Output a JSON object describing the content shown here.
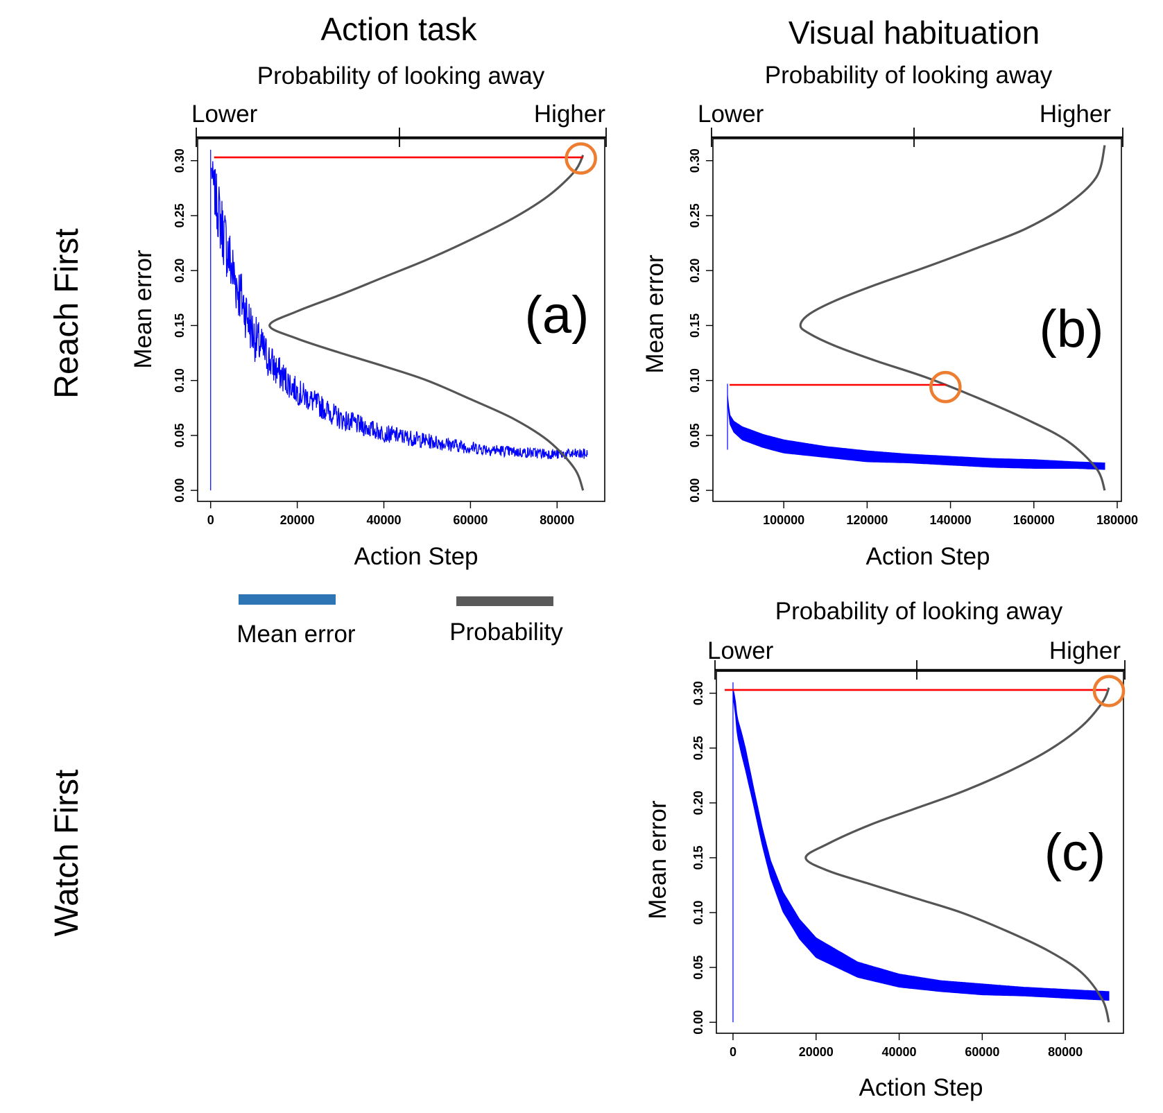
{
  "headers": {
    "action_task": "Action task",
    "visual_habituation": "Visual habituation"
  },
  "row_labels": {
    "reach_first": "Reach First",
    "watch_first": "Watch First"
  },
  "legend": {
    "items": [
      {
        "label": "Mean error",
        "color": "#2e75b6"
      },
      {
        "label": "Probability",
        "color": "#595959"
      }
    ]
  },
  "colors": {
    "mean_error_line": "#0000ff",
    "probability_curve": "#555555",
    "threshold_line": "#ff0000",
    "highlight_circle": "#ed7d31"
  },
  "chart_data": [
    {
      "id": "a",
      "type": "line",
      "panel_label": "(a)",
      "prob_title": "Probability of looking away",
      "prob_axis_left": "Lower",
      "prob_axis_right": "Higher",
      "xlabel": "Action Step",
      "ylabel": "Mean error",
      "xlim": [
        -3000,
        91000
      ],
      "ylim": [
        -0.01,
        0.32
      ],
      "xticks": [
        0,
        20000,
        40000,
        60000,
        80000
      ],
      "yticks": [
        0.0,
        0.05,
        0.1,
        0.15,
        0.2,
        0.25,
        0.3
      ],
      "series": [
        {
          "name": "Mean error",
          "style": "noisy",
          "x": [
            0,
            500,
            2000,
            5000,
            10000,
            15000,
            20000,
            30000,
            40000,
            50000,
            60000,
            70000,
            80000,
            87000
          ],
          "y": [
            0.3,
            0.28,
            0.25,
            0.2,
            0.14,
            0.11,
            0.09,
            0.065,
            0.052,
            0.045,
            0.039,
            0.035,
            0.033,
            0.033
          ],
          "noise": [
            0.0,
            0.02,
            0.03,
            0.03,
            0.022,
            0.016,
            0.012,
            0.01,
            0.008,
            0.007,
            0.006,
            0.005,
            0.005,
            0.005
          ],
          "start_spike": [
            0.0,
            0.31
          ]
        },
        {
          "name": "Probability",
          "style": "curve",
          "x": [
            86000,
            84000,
            78000,
            70000,
            60000,
            50000,
            40000,
            30000,
            20000,
            13600,
            20000,
            30000,
            40000,
            50000,
            60000,
            70000,
            78000,
            84000,
            86000
          ],
          "y": [
            0.0,
            0.02,
            0.045,
            0.065,
            0.083,
            0.1,
            0.113,
            0.125,
            0.138,
            0.15,
            0.163,
            0.178,
            0.194,
            0.21,
            0.228,
            0.248,
            0.268,
            0.29,
            0.305
          ]
        }
      ],
      "threshold": {
        "x0": 800,
        "x1": 86000,
        "y": 0.303
      },
      "highlight": {
        "x": 85500,
        "y": 0.302
      }
    },
    {
      "id": "b",
      "type": "line",
      "panel_label": "(b)",
      "prob_title": "Probability of looking away",
      "prob_axis_left": "Lower",
      "prob_axis_right": "Higher",
      "xlabel": "Action Step",
      "ylabel": "Mean error",
      "xlim": [
        83000,
        181000
      ],
      "ylim": [
        -0.01,
        0.32
      ],
      "xticks": [
        100000,
        120000,
        140000,
        160000,
        180000
      ],
      "yticks": [
        0.0,
        0.05,
        0.1,
        0.15,
        0.2,
        0.25,
        0.3
      ],
      "series": [
        {
          "name": "Mean error",
          "style": "band",
          "x": [
            86500,
            87000,
            88000,
            90000,
            95000,
            100000,
            110000,
            120000,
            130000,
            140000,
            150000,
            160000,
            170000,
            177000
          ],
          "y": [
            0.085,
            0.065,
            0.058,
            0.052,
            0.045,
            0.04,
            0.035,
            0.031,
            0.029,
            0.027,
            0.025,
            0.024,
            0.023,
            0.022
          ],
          "half_width": [
            0.002,
            0.004,
            0.005,
            0.006,
            0.006,
            0.006,
            0.005,
            0.005,
            0.004,
            0.004,
            0.004,
            0.004,
            0.003,
            0.003
          ],
          "start_spike": [
            0.037,
            0.097
          ]
        },
        {
          "name": "Probability",
          "style": "curve",
          "x": [
            177000,
            175000,
            168000,
            158000,
            146000,
            134000,
            122000,
            112000,
            106000,
            104000,
            106000,
            112000,
            122000,
            134000,
            146000,
            158000,
            168000,
            175000,
            177000
          ],
          "y": [
            0.0,
            0.02,
            0.045,
            0.065,
            0.085,
            0.103,
            0.118,
            0.132,
            0.143,
            0.15,
            0.16,
            0.172,
            0.187,
            0.203,
            0.22,
            0.238,
            0.26,
            0.285,
            0.314
          ]
        }
      ],
      "threshold": {
        "x0": 87000,
        "x1": 139000,
        "y": 0.096
      },
      "highlight": {
        "x": 138800,
        "y": 0.094
      }
    },
    {
      "id": "c",
      "type": "line",
      "panel_label": "(c)",
      "prob_title": "Probability of looking away",
      "prob_axis_left": "Lower",
      "prob_axis_right": "Higher",
      "xlabel": "Action Step",
      "ylabel": "Mean error",
      "xlim": [
        -4000,
        94000
      ],
      "ylim": [
        -0.01,
        0.32
      ],
      "xticks": [
        0,
        20000,
        40000,
        60000,
        80000
      ],
      "yticks": [
        0.0,
        0.05,
        0.1,
        0.15,
        0.2,
        0.25,
        0.3
      ],
      "series": [
        {
          "name": "Mean error",
          "style": "band",
          "x": [
            0,
            500,
            1000,
            2000,
            3000,
            5000,
            7000,
            9000,
            12000,
            16000,
            20000,
            30000,
            40000,
            50000,
            60000,
            70000,
            80000,
            90500
          ],
          "y": [
            0.3,
            0.29,
            0.27,
            0.255,
            0.24,
            0.205,
            0.17,
            0.14,
            0.11,
            0.085,
            0.068,
            0.048,
            0.038,
            0.033,
            0.03,
            0.028,
            0.026,
            0.024
          ],
          "half_width": [
            0.004,
            0.006,
            0.008,
            0.01,
            0.01,
            0.008,
            0.008,
            0.008,
            0.009,
            0.009,
            0.009,
            0.007,
            0.006,
            0.005,
            0.005,
            0.004,
            0.004,
            0.004
          ],
          "start_spike": [
            0.0,
            0.31
          ]
        },
        {
          "name": "Probability",
          "style": "curve",
          "x": [
            90500,
            89000,
            84000,
            76000,
            66000,
            55000,
            44000,
            33000,
            23000,
            17500,
            23000,
            33000,
            44000,
            55000,
            66000,
            76000,
            84000,
            89000,
            90500
          ],
          "y": [
            0.0,
            0.02,
            0.045,
            0.065,
            0.083,
            0.1,
            0.113,
            0.126,
            0.138,
            0.15,
            0.163,
            0.18,
            0.195,
            0.21,
            0.228,
            0.248,
            0.27,
            0.292,
            0.305
          ]
        }
      ],
      "threshold": {
        "x0": -2000,
        "x1": 90000,
        "y": 0.303
      },
      "highlight": {
        "x": 90500,
        "y": 0.302
      }
    }
  ]
}
